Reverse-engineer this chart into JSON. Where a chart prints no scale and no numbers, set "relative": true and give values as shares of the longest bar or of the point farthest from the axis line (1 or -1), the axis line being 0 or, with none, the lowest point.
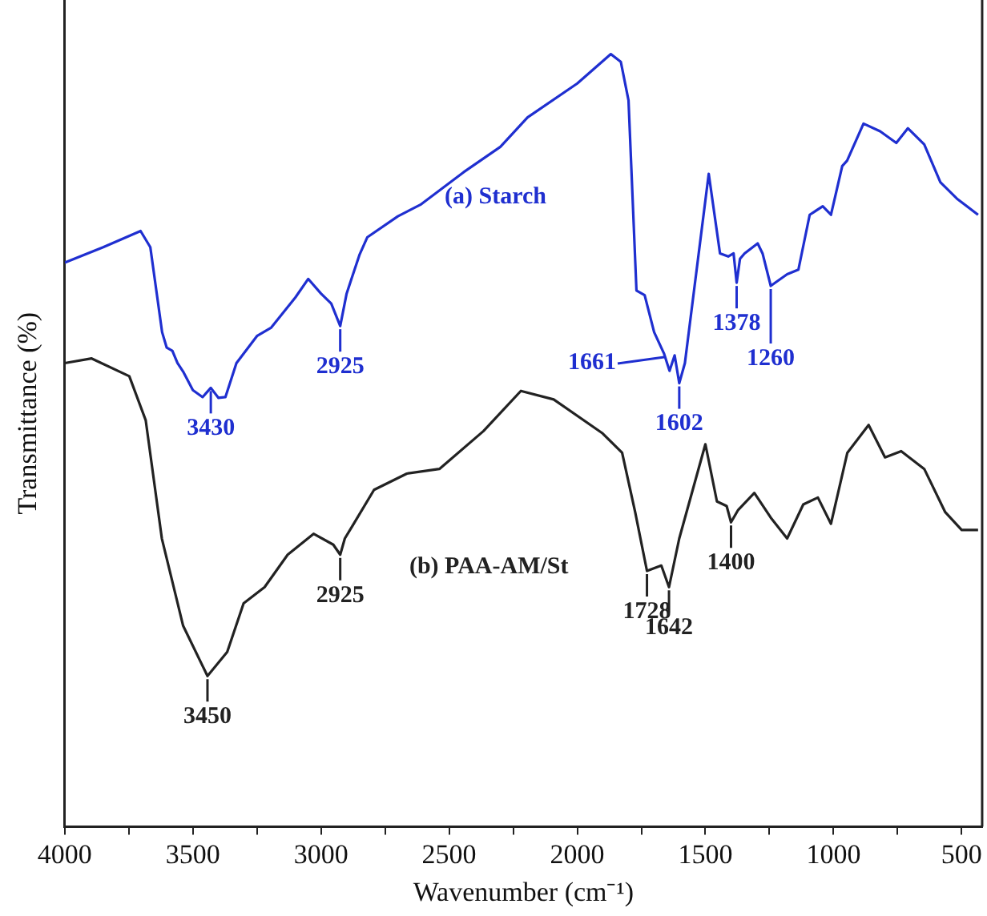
{
  "chart_data": {
    "type": "line",
    "xlabel": "Wavenumber (cm⁻¹)",
    "ylabel": "Transmittance (%)",
    "relative": true,
    "xlim": [
      4000,
      420
    ],
    "xticks": [
      4000,
      {
        "value": 3750,
        "label": null
      },
      3500,
      {
        "value": 3250,
        "label": null
      },
      3000,
      {
        "value": 2750,
        "label": null
      },
      2500,
      {
        "value": 2250,
        "label": null
      },
      2000,
      {
        "value": 1750,
        "label": null
      },
      1500,
      {
        "value": 1250,
        "label": null
      },
      1000,
      {
        "value": 750,
        "label": null
      },
      500
    ],
    "series": [
      {
        "name": "(a) Starch",
        "color": "#1f2fd0",
        "x": [
          4000,
          3850,
          3704,
          3666,
          3620,
          3602,
          3580,
          3560,
          3538,
          3500,
          3462,
          3430,
          3400,
          3373,
          3330,
          3250,
          3194,
          3100,
          3050,
          3000,
          2960,
          2925,
          2900,
          2881,
          2850,
          2819,
          2700,
          2612,
          2444,
          2300,
          2194,
          2000,
          1869,
          1830,
          1800,
          1769,
          1737,
          1700,
          1661,
          1640,
          1620,
          1602,
          1580,
          1487,
          1443,
          1411,
          1390,
          1378,
          1365,
          1347,
          1296,
          1277,
          1245,
          1181,
          1137,
          1093,
          1042,
          1010,
          966,
          947,
          883,
          818,
          755,
          710,
          646,
          583,
          519,
          436
        ],
        "values": [
          0.73,
          0.75,
          0.771,
          0.75,
          0.64,
          0.62,
          0.616,
          0.6,
          0.589,
          0.565,
          0.556,
          0.568,
          0.555,
          0.556,
          0.6,
          0.635,
          0.646,
          0.685,
          0.709,
          0.69,
          0.677,
          0.648,
          0.69,
          0.709,
          0.74,
          0.763,
          0.79,
          0.805,
          0.847,
          0.88,
          0.918,
          0.962,
          1.0,
          0.99,
          0.94,
          0.694,
          0.688,
          0.64,
          0.612,
          0.59,
          0.61,
          0.574,
          0.6,
          0.845,
          0.742,
          0.738,
          0.742,
          0.704,
          0.735,
          0.742,
          0.755,
          0.742,
          0.7,
          0.715,
          0.721,
          0.792,
          0.803,
          0.792,
          0.855,
          0.862,
          0.91,
          0.9,
          0.885,
          0.904,
          0.883,
          0.834,
          0.813,
          0.792
        ]
      },
      {
        "name": "(b) PAA-AM/St",
        "color": "#222222",
        "x": [
          4000,
          3895,
          3748,
          3684,
          3621,
          3538,
          3443,
          3366,
          3302,
          3220,
          3130,
          3029,
          2952,
          2925,
          2907,
          2876,
          2793,
          2665,
          2538,
          2366,
          2220,
          2092,
          1901,
          1825,
          1774,
          1728,
          1672,
          1642,
          1602,
          1500,
          1455,
          1417,
          1400,
          1372,
          1309,
          1245,
          1181,
          1118,
          1061,
          1010,
          946,
          863,
          799,
          736,
          646,
          564,
          500,
          436
        ],
        "values": [
          0.6,
          0.606,
          0.583,
          0.526,
          0.373,
          0.26,
          0.195,
          0.226,
          0.289,
          0.31,
          0.352,
          0.379,
          0.365,
          0.352,
          0.373,
          0.39,
          0.436,
          0.457,
          0.463,
          0.512,
          0.564,
          0.553,
          0.509,
          0.484,
          0.407,
          0.331,
          0.338,
          0.31,
          0.373,
          0.495,
          0.421,
          0.415,
          0.394,
          0.41,
          0.432,
          0.4,
          0.373,
          0.417,
          0.426,
          0.392,
          0.484,
          0.52,
          0.478,
          0.486,
          0.463,
          0.407,
          0.384,
          0.384
        ]
      }
    ],
    "annotations": [
      {
        "text": "3430",
        "x": 3430,
        "y": 0.568
      },
      {
        "text": "2925",
        "x": 2925,
        "y": 0.648
      },
      {
        "text": "1661",
        "x": 1661,
        "y": 0.612
      },
      {
        "text": "1602",
        "x": 1602,
        "y": 0.574
      },
      {
        "text": "1378",
        "x": 1378,
        "y": 0.704
      },
      {
        "text": "1260",
        "x": 1245,
        "y": 0.7
      },
      {
        "text": "3450",
        "x": 3443,
        "y": 0.195
      },
      {
        "text": "2925",
        "x": 2925,
        "y": 0.352
      },
      {
        "text": "1728",
        "x": 1728,
        "y": 0.331
      },
      {
        "text": "1642",
        "x": 1642,
        "y": 0.31
      },
      {
        "text": "1400",
        "x": 1400,
        "y": 0.394
      }
    ]
  }
}
